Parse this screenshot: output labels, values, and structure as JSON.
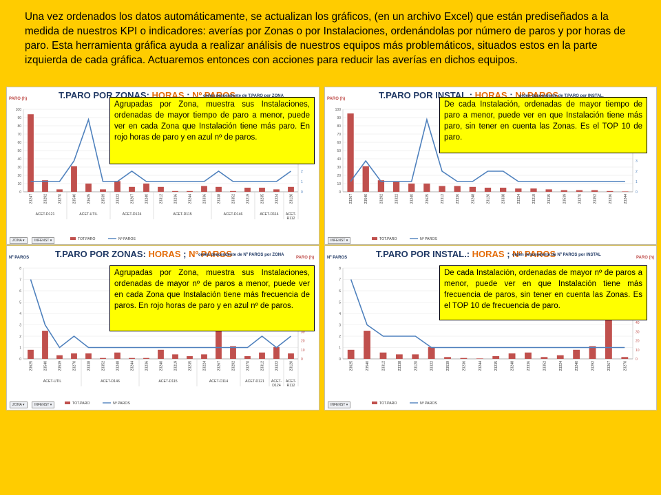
{
  "intro": "Una vez  ordenados los datos automáticamente, se actualizan los gráficos, (en un archivo Excel) que están prediseñados a la medida de nuestros KPI o indicadores: averías por Zonas o por Instalaciones, ordenándolas por número de paros y por horas de paro.  Esta herramienta gráfica ayuda a realizar análisis de nuestros equipos más problemáticos, situados estos en la parte izquierda de cada gráfica. Actuaremos entonces con acciones para reducir las averías en dichos equipos.",
  "colors": {
    "background": "#FFCC00",
    "bar": "#C0504D",
    "line": "#4F81BD",
    "note": "#FFFF00",
    "title": "#1F3864",
    "title_highlight": "#E36C09"
  },
  "panels": [
    {
      "title_a": "T.PARO POR ZONAS: ",
      "title_b": "HORAS",
      "title_c": " ; ",
      "title_d": "Nº PAROS",
      "subtitle": "orden descendente de T.PARO por ZONA",
      "left_axis": "PARO (h)",
      "right_axis": "",
      "note": "Agrupadas por Zona, muestra sus Instalaciones, ordenadas de mayor tiempo de paro a menor, puede ver en cada Zona que Instalación tiene más paro. En rojo horas de paro y en azul nº de paros.",
      "filters": [
        "ZONA",
        "INFENST"
      ]
    },
    {
      "title_a": "T.PARO POR INSTAL.: ",
      "title_b": "HORAS",
      "title_c": " ; ",
      "title_d": "Nº PAROS",
      "subtitle": "orden descendente de T.PARO por INSTAL.",
      "left_axis": "PARO (h)",
      "right_axis": "",
      "note": "De cada Instalación, ordenadas de mayor tiempo de paro a menor, puede ver en que Instalación tiene más paro, sin tener en cuenta las Zonas. Es el TOP 10 de paro.",
      "filters": [
        "INFENST"
      ]
    },
    {
      "title_a": "T.PARO POR ZONAS: ",
      "title_b": "HORAS",
      "title_c": " ; ",
      "title_d": "Nº PAROS",
      "subtitle": "orden descendente de Nº PAROS por ZONA",
      "left_axis": "Nº PAROS",
      "right_axis": "PARO (h)",
      "note": "Agrupadas por Zona, muestra sus Instalaciones, ordenadas de mayor nº de paros a menor, puede ver en cada Zona que Instalación tiene más frecuencia de paros. En rojo horas de paro y en azul nº de paros.",
      "filters": [
        "ZONA",
        "INFENST"
      ]
    },
    {
      "title_a": "T.PARO POR INSTAL.: ",
      "title_b": "HORAS",
      "title_c": " ; ",
      "title_d": "Nº PAROS",
      "subtitle": "orden descendente de Nº PAROS por INSTAL",
      "left_axis": "Nº PAROS",
      "right_axis": "PARO (h)",
      "note": "De cada Instalación, ordenadas de mayor nº de paros a menor, puede ver en que Instalación tiene más frecuencia de paros, sin tener en cuenta las Zonas. Es el TOP 10 de frecuencia de paro.",
      "filters": [
        "INFENST"
      ]
    }
  ],
  "chart_data": [
    {
      "type": "bar",
      "categories": [
        "23247",
        "23292",
        "23270",
        "23540",
        "23625",
        "23539",
        "23322",
        "23267",
        "23240",
        "23312",
        "23236",
        "23244",
        "23336",
        "23338",
        "23352",
        "23219",
        "23235",
        "23224",
        "23120"
      ],
      "groups": [
        {
          "label": "ACET-D121",
          "count": 3
        },
        {
          "label": "ACET-UTIL",
          "count": 3
        },
        {
          "label": "ACET-D124",
          "count": 3
        },
        {
          "label": "ACET-D115",
          "count": 4
        },
        {
          "label": "ACET-D146",
          "count": 3
        },
        {
          "label": "ACET-D114",
          "count": 2
        },
        {
          "label": "ACET-R112",
          "count": 1
        }
      ],
      "series": [
        {
          "name": "TOT.PARO",
          "kind": "bar",
          "axis": "left",
          "values": [
            94,
            14,
            3,
            31,
            10,
            3,
            13,
            6,
            10,
            6,
            1,
            1,
            7,
            6,
            1,
            5,
            5,
            3,
            6
          ]
        },
        {
          "name": "Nº PAROS",
          "kind": "line",
          "axis": "right",
          "values": [
            1,
            1,
            1,
            3,
            7,
            1,
            1,
            2,
            1,
            1,
            1,
            1,
            1,
            2,
            1,
            1,
            1,
            1,
            2
          ]
        }
      ],
      "left_ticks": [
        0,
        10,
        20,
        30,
        40,
        50,
        60,
        70,
        80,
        90,
        100
      ],
      "right_ticks": [
        0,
        1,
        2,
        3,
        4,
        5,
        6,
        7,
        8
      ],
      "ylim": [
        0,
        100
      ],
      "y2lim": [
        0,
        8
      ]
    },
    {
      "type": "bar",
      "categories": [
        "23267",
        "23540",
        "23292",
        "23322",
        "23240",
        "23625",
        "23312",
        "23336",
        "23248",
        "23120",
        "23338",
        "23224",
        "23219",
        "23235",
        "23539",
        "23270",
        "23352",
        "23236",
        "23244"
      ],
      "series": [
        {
          "name": "TOT.PARO",
          "kind": "bar",
          "axis": "left",
          "values": [
            95,
            31,
            14,
            12,
            10,
            10,
            7,
            7,
            6,
            5,
            5,
            4,
            4,
            3,
            2,
            2,
            2,
            1,
            0.5
          ]
        },
        {
          "name": "Nº PAROS",
          "kind": "line",
          "axis": "right",
          "values": [
            1,
            3,
            1,
            1,
            1,
            7,
            2,
            1,
            1,
            2,
            2,
            1,
            1,
            1,
            1,
            1,
            1,
            1,
            1
          ]
        }
      ],
      "left_ticks": [
        0,
        10,
        20,
        30,
        40,
        50,
        60,
        70,
        80,
        90,
        100
      ],
      "right_ticks": [
        0,
        1,
        2,
        3,
        4,
        5,
        6,
        7,
        8
      ],
      "ylim": [
        0,
        100
      ],
      "y2lim": [
        0,
        8
      ]
    },
    {
      "type": "bar",
      "categories": [
        "23625",
        "23540",
        "23539",
        "23270",
        "23338",
        "23352",
        "23248",
        "23244",
        "23236",
        "23240",
        "23219",
        "23235",
        "23224",
        "23267",
        "23292",
        "23270",
        "23312",
        "23322",
        "23120"
      ],
      "groups": [
        {
          "label": "ACET-UTIL",
          "count": 4
        },
        {
          "label": "ACET-D146",
          "count": 4
        },
        {
          "label": "ACET-D115",
          "count": 4
        },
        {
          "label": "ACET-D114",
          "count": 3
        },
        {
          "label": "ACET-D121",
          "count": 2
        },
        {
          "label": "ACET-D124",
          "count": 1
        },
        {
          "label": "ACET-R112",
          "count": 1
        }
      ],
      "series": [
        {
          "name": "TOT.PARO",
          "kind": "bar",
          "axis": "right",
          "values": [
            10,
            31,
            4,
            6,
            6,
            1,
            7,
            1,
            1,
            10,
            5,
            3,
            5,
            94,
            14,
            3,
            7,
            13,
            6
          ]
        },
        {
          "name": "Nº PAROS",
          "kind": "line",
          "axis": "left",
          "values": [
            7,
            3,
            1,
            2,
            1,
            1,
            1,
            1,
            1,
            1,
            1,
            1,
            1,
            1,
            1,
            1,
            2,
            1,
            2
          ]
        }
      ],
      "left_ticks": [
        0,
        1,
        2,
        3,
        4,
        5,
        6,
        7,
        8
      ],
      "right_ticks": [
        0,
        10,
        20,
        30,
        40,
        50,
        60,
        70,
        80,
        90,
        100
      ],
      "ylim": [
        0,
        8
      ],
      "y2lim": [
        0,
        100
      ]
    },
    {
      "type": "bar",
      "categories": [
        "23625",
        "23540",
        "23312",
        "23338",
        "23120",
        "23322",
        "23539",
        "23236",
        "23244",
        "23235",
        "23248",
        "23336",
        "23352",
        "23224",
        "23240",
        "23292",
        "23267",
        "23270"
      ],
      "series": [
        {
          "name": "TOT.PARO",
          "kind": "bar",
          "axis": "right",
          "values": [
            10,
            31,
            7,
            5,
            5,
            13,
            2,
            1,
            0.5,
            3,
            6,
            7,
            2,
            4,
            10,
            14,
            95,
            2
          ]
        },
        {
          "name": "Nº PAROS",
          "kind": "line",
          "axis": "left",
          "values": [
            7,
            3,
            2,
            2,
            2,
            1,
            1,
            1,
            1,
            1,
            1,
            1,
            1,
            1,
            1,
            1,
            1,
            1
          ]
        }
      ],
      "left_ticks": [
        0,
        1,
        2,
        3,
        4,
        5,
        6,
        7,
        8
      ],
      "right_ticks": [
        0,
        10,
        20,
        30,
        40,
        50,
        60,
        70,
        80,
        90,
        100
      ],
      "ylim": [
        0,
        8
      ],
      "y2lim": [
        0,
        100
      ]
    }
  ]
}
